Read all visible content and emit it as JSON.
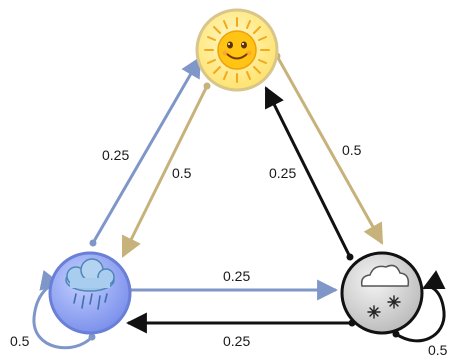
{
  "colors": {
    "rain_to_sun": "#7f96c8",
    "sun_to_rain": "#c6b27a",
    "sun_to_snow": "#c6b27a",
    "snow_to_sun": "#111111",
    "rain_to_snow": "#7f96c8",
    "snow_to_rain": "#111111",
    "rain_self": "#7f96c8",
    "snow_self": "#111111",
    "sun_fill": "#ffe36e",
    "rain_fill": "#8fa4f2",
    "snow_fill": "#cfcfcf"
  },
  "nodes": {
    "sun": {
      "icon": "sun-face-icon"
    },
    "rain": {
      "icon": "rain-cloud-icon"
    },
    "snow": {
      "icon": "snow-cloud-icon"
    }
  },
  "edges": {
    "rain_to_sun": "0.25",
    "sun_to_rain": "0.5",
    "snow_to_sun": "0.25",
    "sun_to_snow": "0.5",
    "rain_to_snow": "0.25",
    "snow_to_rain": "0.25",
    "rain_self": "0.5",
    "snow_self": "0.5"
  }
}
